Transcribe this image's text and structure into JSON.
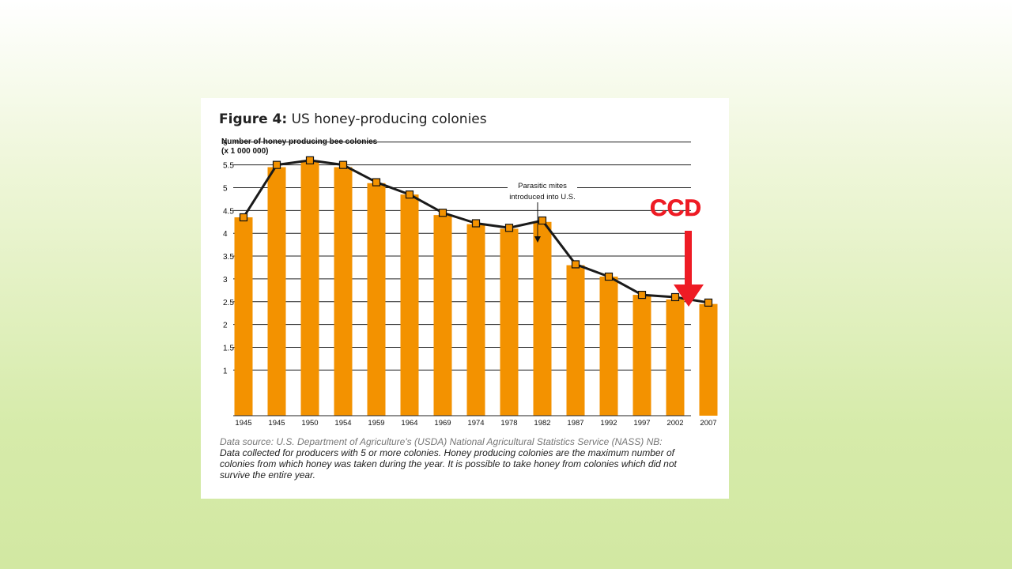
{
  "figure": {
    "label": "Figure 4:",
    "title": "US honey-producing colonies",
    "ylabel_line1": "Number of honey producing bee colonies",
    "ylabel_line2": "(x 1 000 000)"
  },
  "annotation": {
    "line1": "Parasitic mites",
    "line2": "introduced into U.S."
  },
  "ccd": {
    "label": "CCD",
    "color": "#ee1b24"
  },
  "source": {
    "lead": "Data source: U.S. Department of Agriculture's (USDA) National Agricultural Statistics Service (NASS) NB:",
    "body": "Data collected for producers with 5 or more colonies. Honey producing colonies are the maximum number of colonies from which honey was taken during the year. It is possible to take honey from colonies which did not survive the entire year."
  },
  "chart_data": {
    "type": "bar",
    "categories": [
      "1945",
      "1945",
      "1950",
      "1954",
      "1959",
      "1964",
      "1969",
      "1974",
      "1978",
      "1982",
      "1987",
      "1992",
      "1997",
      "2002",
      "2007"
    ],
    "values": [
      4.35,
      5.45,
      5.6,
      5.45,
      5.1,
      4.85,
      4.4,
      4.2,
      4.1,
      4.25,
      3.3,
      3.05,
      2.65,
      2.55,
      2.45
    ],
    "line_values": [
      4.35,
      5.5,
      5.6,
      5.5,
      5.12,
      4.85,
      4.45,
      4.22,
      4.12,
      4.28,
      3.32,
      3.05,
      2.65,
      2.6,
      2.48
    ],
    "yticks": [
      "1",
      "1.5",
      "2",
      "2.5",
      "3",
      "3.5",
      "4",
      "4.5",
      "5",
      "5.5",
      "6"
    ],
    "ylim": [
      0.5,
      6
    ],
    "grid": true,
    "colors": {
      "bar": "#f39200",
      "line": "#1a1a1a",
      "marker": "#f39200"
    }
  }
}
